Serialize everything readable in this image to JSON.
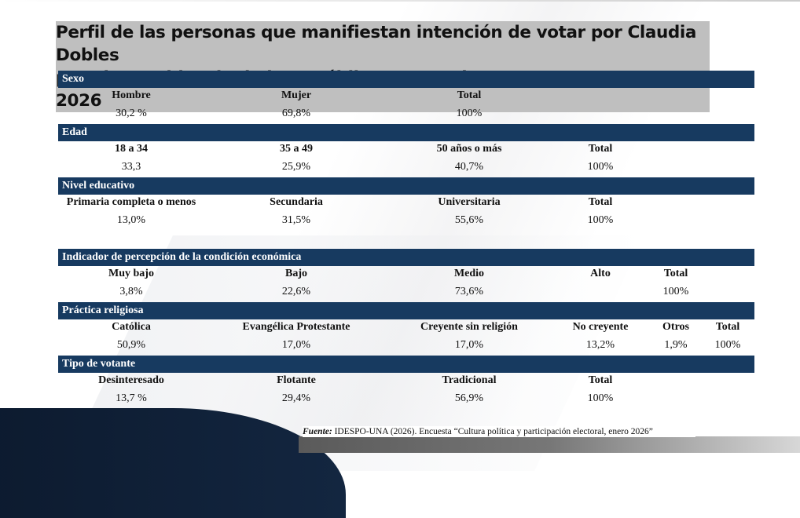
{
  "title": {
    "line1": "Perfil de las personas que manifiestan intención de votar por Claudia Dobles",
    "line2": "para la presidencia de la República. Costa Rica, enero 2026"
  },
  "sections": [
    {
      "id": "sexo",
      "header": "Sexo",
      "labels": [
        "Hombre",
        "Mujer",
        "Total"
      ],
      "values": [
        "30,2 %",
        "69,8%",
        "100%"
      ]
    },
    {
      "id": "edad",
      "header": "Edad",
      "labels": [
        "18 a 34",
        "35 a 49",
        "50 años o más",
        "Total"
      ],
      "values": [
        "33,3",
        "25,9%",
        "40,7%",
        "100%"
      ]
    },
    {
      "id": "nivel-educativo",
      "header": "Nivel educativo",
      "labels": [
        "Primaria completa o menos",
        "Secundaria",
        "Universitaria",
        "Total"
      ],
      "values": [
        "13,0%",
        "31,5%",
        "55,6%",
        "100%"
      ]
    },
    {
      "id": "condicion-economica",
      "header": "Indicador de percepción de la condición económica",
      "labels": [
        "Muy bajo",
        "Bajo",
        "Medio",
        "Alto",
        "Total"
      ],
      "values": [
        "3,8%",
        "22,6%",
        "73,6%",
        "",
        "100%"
      ]
    },
    {
      "id": "practica-religiosa",
      "header": "Práctica religiosa",
      "labels": [
        "Católica",
        "Evangélica Protestante",
        "Creyente sin religión",
        "No creyente",
        "Otros",
        "Total"
      ],
      "values": [
        "50,9%",
        "17,0%",
        "17,0%",
        "13,2%",
        "1,9%",
        "100%"
      ]
    },
    {
      "id": "tipo-votante",
      "header": "Tipo de votante",
      "labels": [
        "Desinteresado",
        "Flotante",
        "Tradicional",
        "Total"
      ],
      "values": [
        "13,7 %",
        "29,4%",
        "56,9%",
        "100%"
      ]
    }
  ],
  "footer": {
    "label": "Fuente:",
    "text": "IDESPO-UNA (2026). Encuesta “Cultura política y participación electoral, enero 2026”"
  }
}
